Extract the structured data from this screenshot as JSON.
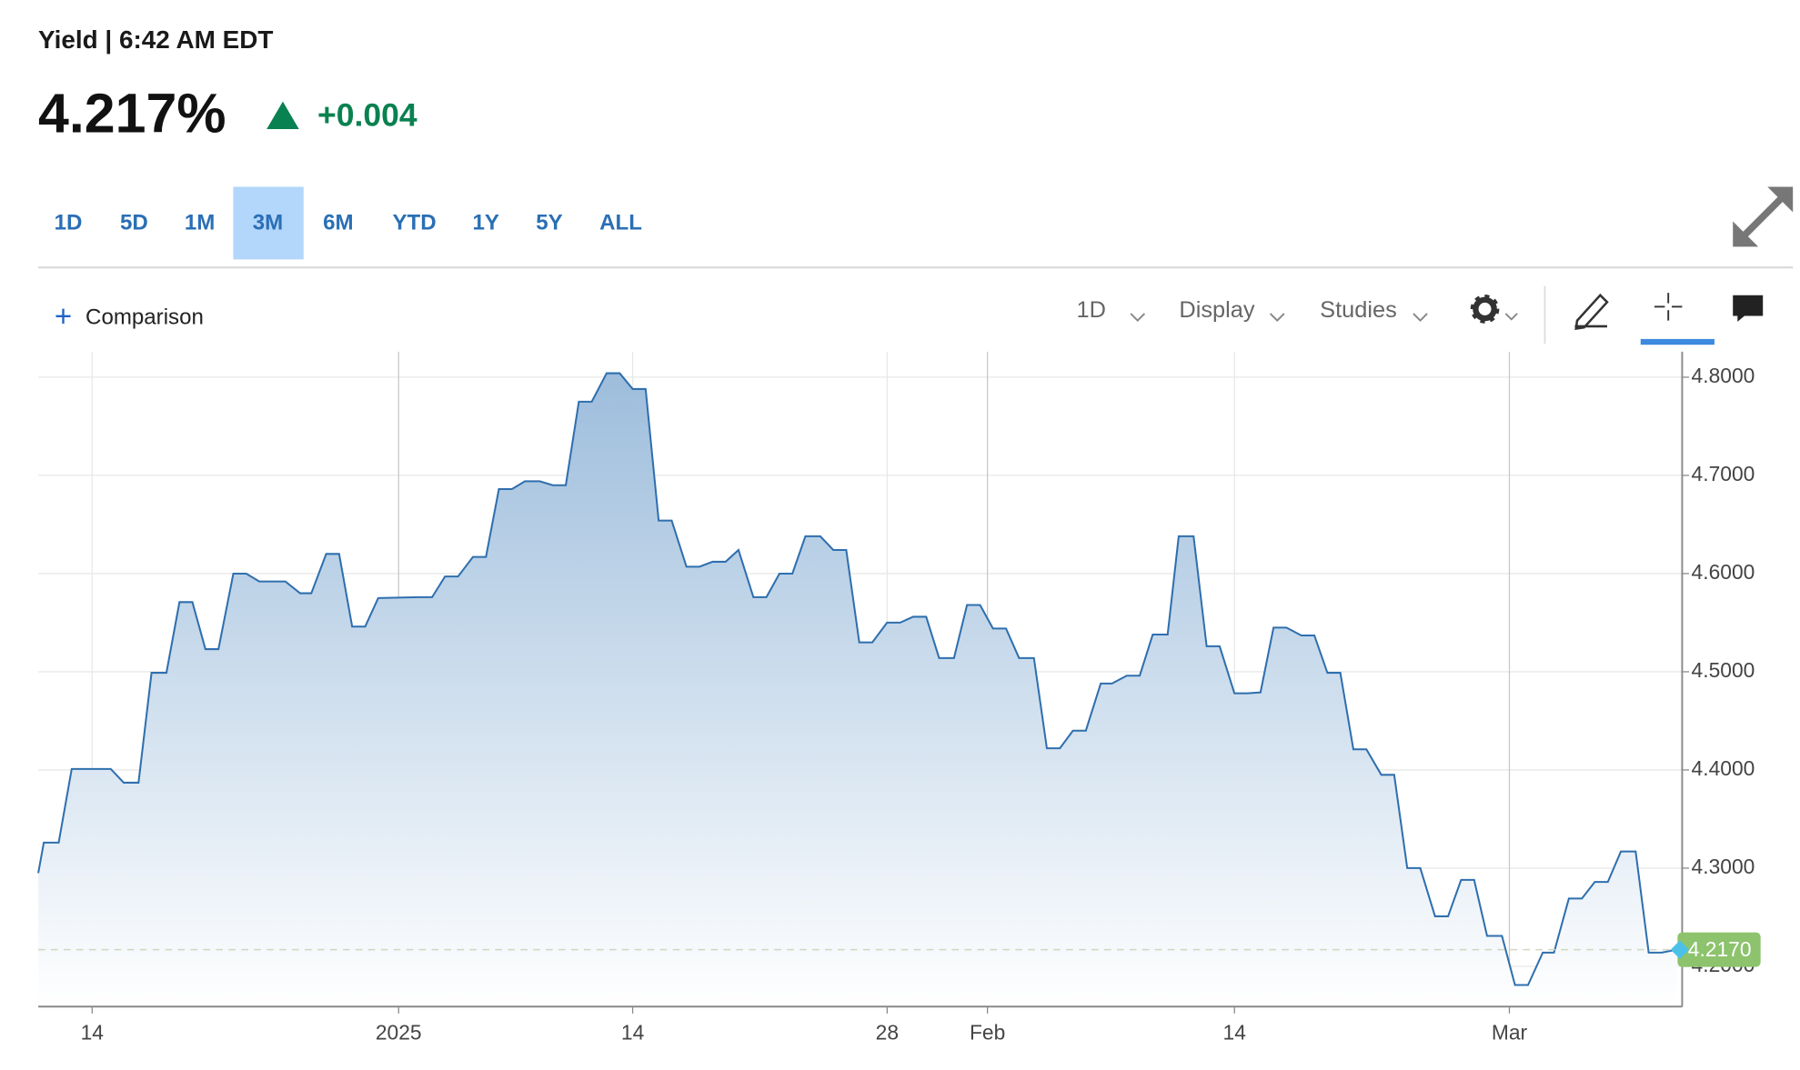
{
  "header": {
    "title": "Yield | 6:42 AM EDT",
    "price": "4.217%",
    "change": "+0.004"
  },
  "ranges": [
    "1D",
    "5D",
    "1M",
    "3M",
    "6M",
    "YTD",
    "1Y",
    "5Y",
    "ALL"
  ],
  "active_range": "3M",
  "toolbar": {
    "comparison": "Comparison",
    "interval": "1D",
    "display": "Display",
    "studies": "Studies"
  },
  "chart_data": {
    "type": "line",
    "color": "#2f6fae",
    "grid": true,
    "last_value_label": "4.2170",
    "x": [
      -19.4,
      -19.1,
      -18.3,
      -17.6,
      -15.5,
      -14.8,
      -14.0,
      -13.3,
      -12.5,
      -11.8,
      -11.1,
      -10.4,
      -9.7,
      -8.9,
      -8.2,
      -7.5,
      -6.1,
      -5.3,
      -4.7,
      -3.9,
      -3.2,
      -2.5,
      -1.8,
      -1.1,
      1.1,
      1.8,
      2.5,
      3.2,
      4.0,
      4.7,
      5.4,
      6.1,
      6.8,
      7.6,
      8.3,
      9.0,
      9.7,
      10.4,
      11.2,
      11.9,
      12.6,
      13.3,
      14.0,
      14.7,
      15.5,
      16.2,
      16.9,
      17.6,
      18.3,
      19.1,
      19.8,
      20.5,
      21.2,
      21.9,
      22.7,
      23.4,
      24.1,
      24.8,
      25.5,
      26.3,
      27.0,
      27.7,
      28.4,
      29.1,
      29.9,
      30.6,
      31.3,
      32.0,
      32.7,
      33.4,
      34.2,
      34.9,
      35.6,
      36.3,
      37.0,
      37.8,
      38.4,
      39.2,
      39.9,
      40.6,
      41.4,
      42.0,
      42.8,
      43.5,
      44.2,
      45.0,
      45.7,
      46.4,
      47.1,
      47.8,
      48.6,
      49.3,
      50.0,
      50.7,
      51.4,
      52.1,
      52.9,
      53.6,
      54.3,
      55.0,
      55.8,
      56.5,
      57.2,
      57.9,
      58.6,
      59.4,
      60.1,
      60.8,
      61.6,
      62.2,
      63.0,
      63.7,
      64.4,
      65.1,
      65.8,
      66.6,
      67.3,
      68.0,
      68.8
    ],
    "series": [
      {
        "name": "Yield",
        "values": [
          4.295,
          4.326,
          4.326,
          4.401,
          4.401,
          4.387,
          4.387,
          4.499,
          4.499,
          4.571,
          4.571,
          4.523,
          4.523,
          4.6,
          4.6,
          4.592,
          4.592,
          4.58,
          4.58,
          4.62,
          4.62,
          4.546,
          4.546,
          4.575,
          4.576,
          4.576,
          4.597,
          4.597,
          4.617,
          4.617,
          4.686,
          4.686,
          4.694,
          4.694,
          4.69,
          4.69,
          4.775,
          4.775,
          4.804,
          4.804,
          4.788,
          4.788,
          4.654,
          4.654,
          4.607,
          4.607,
          4.612,
          4.612,
          4.624,
          4.576,
          4.576,
          4.6,
          4.6,
          4.638,
          4.638,
          4.624,
          4.624,
          4.53,
          4.53,
          4.55,
          4.55,
          4.556,
          4.556,
          4.514,
          4.514,
          4.568,
          4.568,
          4.544,
          4.544,
          4.514,
          4.514,
          4.422,
          4.422,
          4.44,
          4.44,
          4.488,
          4.488,
          4.496,
          4.496,
          4.538,
          4.538,
          4.638,
          4.638,
          4.526,
          4.526,
          4.478,
          4.478,
          4.479,
          4.545,
          4.545,
          4.537,
          4.537,
          4.499,
          4.499,
          4.421,
          4.421,
          4.395,
          4.395,
          4.3,
          4.3,
          4.251,
          4.251,
          4.288,
          4.288,
          4.231,
          4.231,
          4.181,
          4.181,
          4.214,
          4.214,
          4.269,
          4.269,
          4.286,
          4.286,
          4.317,
          4.317,
          4.214,
          4.214,
          4.217
        ]
      }
    ],
    "xlim": [
      -19.4,
      69.1
    ],
    "xticks": [
      {
        "value": -16.5,
        "label": "14"
      },
      {
        "value": 0,
        "label": "2025"
      },
      {
        "value": 12.6,
        "label": "14"
      },
      {
        "value": 26.3,
        "label": "28"
      },
      {
        "value": 31.7,
        "label": "Feb"
      },
      {
        "value": 45.0,
        "label": "14"
      },
      {
        "value": 59.8,
        "label": "Mar"
      }
    ],
    "ylim": [
      4.159,
      4.826
    ],
    "yticks": [
      {
        "value": 4.2,
        "label": "4.2000"
      },
      {
        "value": 4.3,
        "label": "4.3000"
      },
      {
        "value": 4.4,
        "label": "4.4000"
      },
      {
        "value": 4.5,
        "label": "4.5000"
      },
      {
        "value": 4.6,
        "label": "4.6000"
      },
      {
        "value": 4.7,
        "label": "4.7000"
      },
      {
        "value": 4.8,
        "label": "4.8000"
      }
    ]
  }
}
